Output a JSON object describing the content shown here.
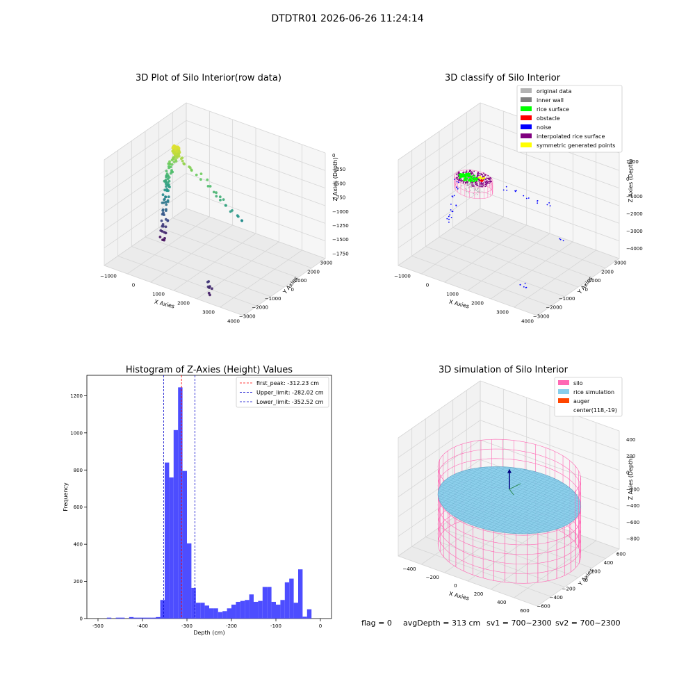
{
  "figure": {
    "title": "DTDTR01 2026-06-26 11:24:14",
    "status": {
      "flag": "flag = 0",
      "avg_depth": "avgDepth = 313 cm",
      "sv1": "sv1 = 700~2300",
      "sv2": "sv2 = 700~2300"
    }
  },
  "chart_data": [
    {
      "type": "scatter",
      "projection": "3d",
      "title": "3D Plot of Silo Interior(row data)",
      "xlabel": "X Axies",
      "ylabel": "Y Axies",
      "zlabel": "Z Axies (Depth)",
      "x_ticks": [
        "−1000",
        "0",
        "1000",
        "2000",
        "3000",
        "4000"
      ],
      "y_ticks": [
        "−3000",
        "−2000",
        "−1000",
        "0",
        "1000",
        "2000",
        "3000"
      ],
      "z_ticks": [
        "0",
        "−250",
        "−500",
        "−750",
        "−1000",
        "−1250",
        "−1500",
        "−1750"
      ],
      "xlim": [
        -1300,
        4400
      ],
      "ylim": [
        -3300,
        3300
      ],
      "zlim": [
        -1800,
        0
      ],
      "colormap": "viridis (by height)",
      "points": [
        [
          0,
          0,
          -140
        ],
        [
          60,
          0,
          -160
        ],
        [
          -40,
          10,
          -180
        ],
        [
          20,
          -20,
          -200
        ],
        [
          -100,
          40,
          -240
        ],
        [
          -160,
          60,
          -300
        ],
        [
          -220,
          80,
          -370
        ],
        [
          -260,
          60,
          -420
        ],
        [
          -300,
          40,
          -480
        ],
        [
          -320,
          60,
          -540
        ],
        [
          -340,
          40,
          -600
        ],
        [
          -360,
          20,
          -650
        ],
        [
          -380,
          0,
          -700
        ],
        [
          -420,
          -10,
          -760
        ],
        [
          -430,
          10,
          -820
        ],
        [
          -440,
          0,
          -880
        ],
        [
          -450,
          -20,
          -960
        ],
        [
          -470,
          0,
          -1040
        ],
        [
          -480,
          10,
          -1100
        ],
        [
          -490,
          -10,
          -1200
        ],
        [
          -500,
          0,
          -1300
        ],
        [
          -520,
          20,
          -1400
        ],
        [
          -540,
          0,
          -1500
        ],
        [
          -560,
          -20,
          -1600
        ],
        [
          -600,
          0,
          -1720
        ],
        [
          100,
          20,
          -230
        ],
        [
          200,
          0,
          -260
        ],
        [
          350,
          -10,
          -300
        ],
        [
          500,
          20,
          -330
        ],
        [
          700,
          0,
          -370
        ],
        [
          900,
          20,
          -420
        ],
        [
          1100,
          0,
          -470
        ],
        [
          1300,
          20,
          -540
        ],
        [
          1500,
          0,
          -600
        ],
        [
          1700,
          20,
          -650
        ],
        [
          1900,
          0,
          -700
        ],
        [
          2100,
          20,
          -750
        ],
        [
          2300,
          0,
          -820
        ],
        [
          2500,
          -20,
          -880
        ],
        [
          2700,
          0,
          -930
        ],
        [
          2800,
          -3000,
          -1500
        ],
        [
          2850,
          -3100,
          -1550
        ],
        [
          2900,
          -2900,
          -1600
        ],
        [
          2950,
          -3200,
          -1650
        ]
      ]
    },
    {
      "type": "scatter",
      "projection": "3d",
      "title": "3D classify of Silo Interior",
      "xlabel": "X Axies",
      "ylabel": "Y Axies",
      "zlabel": "Z Axies (Depth)",
      "x_ticks": [
        "−1000",
        "0",
        "1000",
        "2000",
        "3000",
        "4000"
      ],
      "y_ticks": [
        "−3000",
        "−2000",
        "−1000",
        "0",
        "1000",
        "2000",
        "3000"
      ],
      "z_ticks": [
        "1000",
        "0",
        "−1000",
        "−2000",
        "−3000",
        "−4000"
      ],
      "xlim": [
        -1300,
        4400
      ],
      "ylim": [
        -3300,
        3300
      ],
      "zlim": [
        -4000,
        1500
      ],
      "legend": {
        "position": "upper right",
        "items": [
          {
            "label": "original data",
            "color": "#b3b3b3"
          },
          {
            "label": "inner wall",
            "color": "#808080"
          },
          {
            "label": "rice surface",
            "color": "#00ff00"
          },
          {
            "label": "obstacle",
            "color": "#ff0000"
          },
          {
            "label": "noise",
            "color": "#0000ff"
          },
          {
            "label": "interpolated rice surface",
            "color": "#800080"
          },
          {
            "label": "symmetric generated points",
            "color": "#ffff00"
          }
        ]
      },
      "silo_center": [
        118,
        -19,
        -300
      ],
      "silo_radius": 700
    },
    {
      "type": "bar",
      "title": "Histogram of Z-Axies (Height) Values",
      "xlabel": "Depth (cm)",
      "ylabel": "Frequency",
      "xlim": [
        -525,
        25
      ],
      "ylim": [
        0,
        1310
      ],
      "x_ticks": [
        -500,
        -400,
        -300,
        -200,
        -100,
        0
      ],
      "y_ticks": [
        0,
        200,
        400,
        600,
        800,
        1000,
        1200
      ],
      "bin_width": 10,
      "bin_color": "#4d4dff",
      "bins_start": [
        -500,
        -490,
        -480,
        -470,
        -460,
        -450,
        -440,
        -430,
        -420,
        -410,
        -400,
        -390,
        -380,
        -370,
        -360,
        -350,
        -340,
        -330,
        -320,
        -310,
        -300,
        -290,
        -280,
        -270,
        -260,
        -250,
        -240,
        -230,
        -220,
        -210,
        -200,
        -190,
        -180,
        -170,
        -160,
        -150,
        -140,
        -130,
        -120,
        -110,
        -100,
        -90,
        -80,
        -70,
        -60,
        -50,
        -40,
        -30,
        -20,
        -10,
        -5
      ],
      "values": [
        0,
        0,
        5,
        0,
        5,
        5,
        0,
        8,
        5,
        5,
        5,
        5,
        5,
        8,
        100,
        840,
        760,
        1015,
        1245,
        795,
        405,
        165,
        85,
        85,
        70,
        55,
        55,
        35,
        40,
        55,
        75,
        90,
        95,
        100,
        130,
        90,
        95,
        170,
        170,
        90,
        75,
        100,
        195,
        215,
        85,
        265,
        10,
        50,
        0,
        0,
        0
      ],
      "vlines": [
        {
          "label": "first_peak: -312.23 cm",
          "x": -312.23,
          "color": "#ff0000"
        },
        {
          "label": "Upper_limit: -282.02 cm",
          "x": -282.02,
          "color": "#0000cc"
        },
        {
          "label": "Lower_limit: -352.52 cm",
          "x": -352.52,
          "color": "#0000cc"
        }
      ],
      "legend": "upper right"
    },
    {
      "type": "surface",
      "projection": "3d",
      "title": "3D simulation of Silo Interior",
      "xlabel": "X Axies",
      "ylabel": "Y Axies",
      "zlabel": "Z Axies (Depth)",
      "x_ticks": [
        "−400",
        "−200",
        "0",
        "200",
        "400",
        "600"
      ],
      "y_ticks": [
        "−600",
        "−400",
        "−200",
        "0",
        "200",
        "400",
        "600"
      ],
      "z_ticks": [
        "400",
        "200",
        "0",
        "−200",
        "−400",
        "−600",
        "−800"
      ],
      "xlim": [
        -600,
        800
      ],
      "ylim": [
        -700,
        700
      ],
      "zlim": [
        -950,
        450
      ],
      "silo_radius": 620,
      "silo_top": 10,
      "silo_bottom": -900,
      "rice_level": -313,
      "legend": {
        "position": "upper right",
        "items": [
          {
            "label": "silo",
            "color": "#ff69b4"
          },
          {
            "label": "rice simulation",
            "color": "#87ceeb"
          },
          {
            "label": "auger",
            "color": "#ff4500"
          },
          {
            "label": "center(118,-19)",
            "color": ""
          }
        ]
      }
    }
  ]
}
